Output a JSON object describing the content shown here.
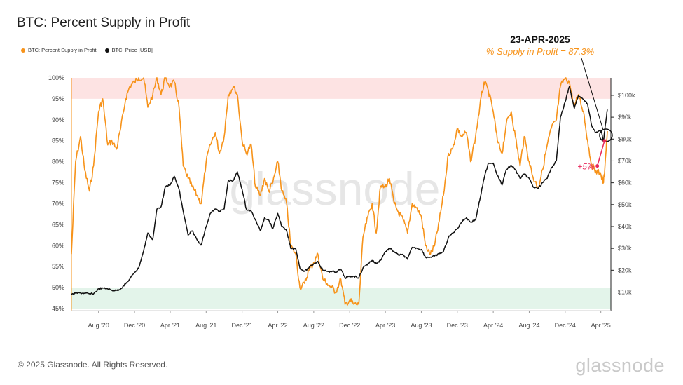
{
  "title": "BTC: Percent Supply in Profit",
  "legend": [
    {
      "label": "BTC: Percent Supply in Profit",
      "color": "#f7931a"
    },
    {
      "label": "BTC: Price [USD]",
      "color": "#111111"
    }
  ],
  "annotation": {
    "date": "23-APR-2025",
    "text": "% Supply in Profit = 87.3%",
    "change": "+5%"
  },
  "footer": "© 2025 Glassnode. All Rights Reserved.",
  "brand": "glassnode",
  "watermark": "glassnode",
  "chart_data": {
    "type": "line",
    "x_tick_labels": [
      "Aug '20",
      "Dec '20",
      "Apr '21",
      "Aug '21",
      "Dec '21",
      "Apr '22",
      "Aug '22",
      "Dec '22",
      "Apr '23",
      "Aug '23",
      "Dec '23",
      "Apr '24",
      "Aug '24",
      "Dec '24",
      "Apr '25"
    ],
    "y_left_tick_labels": [
      "45%",
      "50%",
      "55%",
      "60%",
      "65%",
      "70%",
      "75%",
      "80%",
      "85%",
      "90%",
      "95%",
      "100%"
    ],
    "y_right_tick_labels": [
      "$10k",
      "$20k",
      "$30k",
      "$40k",
      "$50k",
      "$60k",
      "$70k",
      "$80k",
      "$90k",
      "$100k"
    ],
    "ylim_left": [
      44.5,
      100
    ],
    "ylim_right": [
      1500,
      108000
    ],
    "x_range": [
      "2020-05-01",
      "2025-05-05"
    ],
    "bands": [
      {
        "from": 95,
        "to": 100,
        "color": "#fde3e3"
      },
      {
        "from": 45,
        "to": 50,
        "color": "#e3f4ea"
      }
    ],
    "series": [
      {
        "name": "BTC: Percent Supply in Profit",
        "color": "#f7931a",
        "axis": "left",
        "points": [
          [
            "2020-05-01",
            58
          ],
          [
            "2020-05-15",
            80
          ],
          [
            "2020-06-01",
            86
          ],
          [
            "2020-06-15",
            78
          ],
          [
            "2020-07-01",
            73
          ],
          [
            "2020-07-15",
            79
          ],
          [
            "2020-08-01",
            92
          ],
          [
            "2020-08-15",
            95
          ],
          [
            "2020-09-01",
            84
          ],
          [
            "2020-09-15",
            85
          ],
          [
            "2020-10-01",
            83
          ],
          [
            "2020-10-15",
            88
          ],
          [
            "2020-11-01",
            95
          ],
          [
            "2020-11-15",
            98
          ],
          [
            "2020-12-01",
            99
          ],
          [
            "2020-12-15",
            100
          ],
          [
            "2021-01-01",
            100
          ],
          [
            "2021-01-15",
            93
          ],
          [
            "2021-02-01",
            96
          ],
          [
            "2021-02-15",
            100
          ],
          [
            "2021-03-01",
            96
          ],
          [
            "2021-03-15",
            100
          ],
          [
            "2021-04-01",
            98
          ],
          [
            "2021-04-15",
            99
          ],
          [
            "2021-05-01",
            93
          ],
          [
            "2021-05-15",
            79
          ],
          [
            "2021-06-01",
            76
          ],
          [
            "2021-06-15",
            74
          ],
          [
            "2021-07-01",
            72
          ],
          [
            "2021-07-15",
            70
          ],
          [
            "2021-08-01",
            80
          ],
          [
            "2021-08-15",
            84
          ],
          [
            "2021-09-01",
            87
          ],
          [
            "2021-09-15",
            82
          ],
          [
            "2021-10-01",
            86
          ],
          [
            "2021-10-15",
            96
          ],
          [
            "2021-11-01",
            98
          ],
          [
            "2021-11-15",
            96
          ],
          [
            "2021-12-01",
            85
          ],
          [
            "2021-12-15",
            82
          ],
          [
            "2022-01-01",
            84
          ],
          [
            "2022-01-15",
            74
          ],
          [
            "2022-02-01",
            72
          ],
          [
            "2022-02-15",
            76
          ],
          [
            "2022-03-01",
            73
          ],
          [
            "2022-03-15",
            75
          ],
          [
            "2022-04-01",
            80
          ],
          [
            "2022-04-15",
            73
          ],
          [
            "2022-05-01",
            70
          ],
          [
            "2022-05-15",
            60
          ],
          [
            "2022-06-01",
            58
          ],
          [
            "2022-06-15",
            50
          ],
          [
            "2022-07-01",
            51
          ],
          [
            "2022-07-15",
            54
          ],
          [
            "2022-08-01",
            56
          ],
          [
            "2022-08-15",
            58
          ],
          [
            "2022-09-01",
            52
          ],
          [
            "2022-09-15",
            51
          ],
          [
            "2022-10-01",
            50
          ],
          [
            "2022-10-15",
            49
          ],
          [
            "2022-11-01",
            52
          ],
          [
            "2022-11-15",
            46
          ],
          [
            "2022-12-01",
            47
          ],
          [
            "2022-12-15",
            46
          ],
          [
            "2023-01-01",
            46
          ],
          [
            "2023-01-15",
            62
          ],
          [
            "2023-02-01",
            67
          ],
          [
            "2023-02-15",
            70
          ],
          [
            "2023-03-01",
            63
          ],
          [
            "2023-03-15",
            74
          ],
          [
            "2023-04-01",
            74
          ],
          [
            "2023-04-15",
            76
          ],
          [
            "2023-05-01",
            70
          ],
          [
            "2023-05-15",
            68
          ],
          [
            "2023-06-01",
            66
          ],
          [
            "2023-06-15",
            63
          ],
          [
            "2023-07-01",
            70
          ],
          [
            "2023-07-15",
            69
          ],
          [
            "2023-08-01",
            67
          ],
          [
            "2023-08-15",
            60
          ],
          [
            "2023-09-01",
            58
          ],
          [
            "2023-09-15",
            60
          ],
          [
            "2023-10-01",
            66
          ],
          [
            "2023-10-15",
            72
          ],
          [
            "2023-11-01",
            82
          ],
          [
            "2023-11-15",
            83
          ],
          [
            "2023-12-01",
            88
          ],
          [
            "2023-12-15",
            86
          ],
          [
            "2024-01-01",
            87
          ],
          [
            "2024-01-15",
            80
          ],
          [
            "2024-02-01",
            86
          ],
          [
            "2024-02-15",
            93
          ],
          [
            "2024-03-01",
            99
          ],
          [
            "2024-03-15",
            97
          ],
          [
            "2024-04-01",
            92
          ],
          [
            "2024-04-15",
            85
          ],
          [
            "2024-05-01",
            82
          ],
          [
            "2024-05-15",
            89
          ],
          [
            "2024-06-01",
            92
          ],
          [
            "2024-06-15",
            86
          ],
          [
            "2024-07-01",
            79
          ],
          [
            "2024-07-15",
            86
          ],
          [
            "2024-08-01",
            80
          ],
          [
            "2024-08-15",
            76
          ],
          [
            "2024-09-01",
            74
          ],
          [
            "2024-09-15",
            78
          ],
          [
            "2024-10-01",
            84
          ],
          [
            "2024-10-15",
            88
          ],
          [
            "2024-11-01",
            90
          ],
          [
            "2024-11-15",
            98
          ],
          [
            "2024-12-01",
            100
          ],
          [
            "2024-12-15",
            99
          ],
          [
            "2025-01-01",
            93
          ],
          [
            "2025-01-15",
            96
          ],
          [
            "2025-02-01",
            92
          ],
          [
            "2025-02-15",
            85
          ],
          [
            "2025-03-01",
            79
          ],
          [
            "2025-03-15",
            78
          ],
          [
            "2025-04-01",
            77
          ],
          [
            "2025-04-10",
            75
          ],
          [
            "2025-04-15",
            79
          ],
          [
            "2025-04-23",
            87.3
          ]
        ]
      },
      {
        "name": "BTC: Price [USD]",
        "color": "#111111",
        "axis": "right",
        "points": [
          [
            "2020-05-01",
            8800
          ],
          [
            "2020-05-15",
            9500
          ],
          [
            "2020-06-01",
            9600
          ],
          [
            "2020-06-15",
            9400
          ],
          [
            "2020-07-01",
            9200
          ],
          [
            "2020-07-15",
            9200
          ],
          [
            "2020-08-01",
            11500
          ],
          [
            "2020-08-15",
            11800
          ],
          [
            "2020-09-01",
            11500
          ],
          [
            "2020-09-15",
            10800
          ],
          [
            "2020-10-01",
            10800
          ],
          [
            "2020-10-15",
            11500
          ],
          [
            "2020-11-01",
            13800
          ],
          [
            "2020-11-15",
            16000
          ],
          [
            "2020-12-01",
            19000
          ],
          [
            "2020-12-15",
            21000
          ],
          [
            "2021-01-01",
            29000
          ],
          [
            "2021-01-15",
            37000
          ],
          [
            "2021-02-01",
            34000
          ],
          [
            "2021-02-15",
            48000
          ],
          [
            "2021-03-01",
            49000
          ],
          [
            "2021-03-15",
            58000
          ],
          [
            "2021-04-01",
            59000
          ],
          [
            "2021-04-15",
            63000
          ],
          [
            "2021-05-01",
            57000
          ],
          [
            "2021-05-15",
            47000
          ],
          [
            "2021-06-01",
            36000
          ],
          [
            "2021-06-15",
            38000
          ],
          [
            "2021-07-01",
            34000
          ],
          [
            "2021-07-15",
            31500
          ],
          [
            "2021-08-01",
            40000
          ],
          [
            "2021-08-15",
            46000
          ],
          [
            "2021-09-01",
            48000
          ],
          [
            "2021-09-15",
            47000
          ],
          [
            "2021-10-01",
            48000
          ],
          [
            "2021-10-15",
            61000
          ],
          [
            "2021-11-01",
            61000
          ],
          [
            "2021-11-15",
            65000
          ],
          [
            "2021-12-01",
            57000
          ],
          [
            "2021-12-15",
            48000
          ],
          [
            "2022-01-01",
            47000
          ],
          [
            "2022-01-15",
            43000
          ],
          [
            "2022-02-01",
            38000
          ],
          [
            "2022-02-15",
            44000
          ],
          [
            "2022-03-01",
            43000
          ],
          [
            "2022-03-15",
            39000
          ],
          [
            "2022-04-01",
            46000
          ],
          [
            "2022-04-15",
            40000
          ],
          [
            "2022-05-01",
            38000
          ],
          [
            "2022-05-15",
            30000
          ],
          [
            "2022-06-01",
            30000
          ],
          [
            "2022-06-15",
            21000
          ],
          [
            "2022-07-01",
            19500
          ],
          [
            "2022-07-15",
            21000
          ],
          [
            "2022-08-01",
            23000
          ],
          [
            "2022-08-15",
            24000
          ],
          [
            "2022-09-01",
            20000
          ],
          [
            "2022-09-15",
            19500
          ],
          [
            "2022-10-01",
            19300
          ],
          [
            "2022-10-15",
            19200
          ],
          [
            "2022-11-01",
            20500
          ],
          [
            "2022-11-15",
            16500
          ],
          [
            "2022-12-01",
            17000
          ],
          [
            "2022-12-15",
            17300
          ],
          [
            "2023-01-01",
            16600
          ],
          [
            "2023-01-15",
            21000
          ],
          [
            "2023-02-01",
            23000
          ],
          [
            "2023-02-15",
            24500
          ],
          [
            "2023-03-01",
            23000
          ],
          [
            "2023-03-15",
            24500
          ],
          [
            "2023-04-01",
            28500
          ],
          [
            "2023-04-15",
            30000
          ],
          [
            "2023-05-01",
            28500
          ],
          [
            "2023-05-15",
            27000
          ],
          [
            "2023-06-01",
            27000
          ],
          [
            "2023-06-15",
            25000
          ],
          [
            "2023-07-01",
            30500
          ],
          [
            "2023-07-15",
            30200
          ],
          [
            "2023-08-01",
            29500
          ],
          [
            "2023-08-15",
            26000
          ],
          [
            "2023-09-01",
            26000
          ],
          [
            "2023-09-15",
            26500
          ],
          [
            "2023-10-01",
            27500
          ],
          [
            "2023-10-15",
            28500
          ],
          [
            "2023-11-01",
            35000
          ],
          [
            "2023-11-15",
            37000
          ],
          [
            "2023-12-01",
            39000
          ],
          [
            "2023-12-15",
            42000
          ],
          [
            "2024-01-01",
            44000
          ],
          [
            "2024-01-15",
            42000
          ],
          [
            "2024-02-01",
            43000
          ],
          [
            "2024-02-15",
            52000
          ],
          [
            "2024-03-01",
            62000
          ],
          [
            "2024-03-15",
            69000
          ],
          [
            "2024-04-01",
            69000
          ],
          [
            "2024-04-15",
            63500
          ],
          [
            "2024-05-01",
            59000
          ],
          [
            "2024-05-15",
            66000
          ],
          [
            "2024-06-01",
            68000
          ],
          [
            "2024-06-15",
            66000
          ],
          [
            "2024-07-01",
            62000
          ],
          [
            "2024-07-15",
            64000
          ],
          [
            "2024-08-01",
            62000
          ],
          [
            "2024-08-15",
            58000
          ],
          [
            "2024-09-01",
            57500
          ],
          [
            "2024-09-15",
            60000
          ],
          [
            "2024-10-01",
            62000
          ],
          [
            "2024-10-15",
            67000
          ],
          [
            "2024-11-01",
            70000
          ],
          [
            "2024-11-15",
            90000
          ],
          [
            "2024-12-01",
            97000
          ],
          [
            "2024-12-15",
            104000
          ],
          [
            "2025-01-01",
            94000
          ],
          [
            "2025-01-15",
            100000
          ],
          [
            "2025-02-01",
            98000
          ],
          [
            "2025-02-15",
            96000
          ],
          [
            "2025-03-01",
            86000
          ],
          [
            "2025-03-15",
            83000
          ],
          [
            "2025-04-01",
            84000
          ],
          [
            "2025-04-10",
            79000
          ],
          [
            "2025-04-15",
            85000
          ],
          [
            "2025-04-23",
            93500
          ]
        ]
      }
    ]
  }
}
